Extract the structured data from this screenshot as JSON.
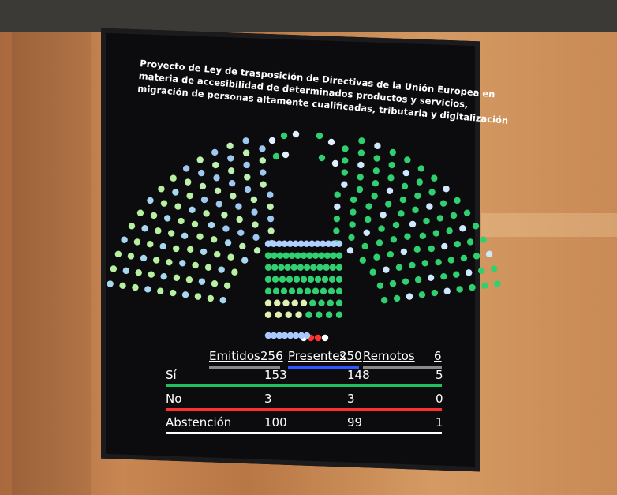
{
  "screen": {
    "title_lines": [
      "Proyecto de Ley de trasposición de Directivas de la Unión Europea en",
      "materia de accesibilidad de determinados productos y servicios,",
      "migración de personas altamente cualificadas, tributaria y digitalización"
    ],
    "table": {
      "header": [
        {
          "label": "Emitidos",
          "value": 256
        },
        {
          "label": "Presentes",
          "value": 250
        },
        {
          "label": "Remotos",
          "value": 6
        }
      ],
      "rows": [
        {
          "label": "Sí",
          "values": [
            153,
            148,
            5
          ]
        },
        {
          "label": "No",
          "values": [
            3,
            3,
            0
          ]
        },
        {
          "label": "Abstención",
          "values": [
            100,
            99,
            1
          ]
        }
      ]
    }
  }
}
